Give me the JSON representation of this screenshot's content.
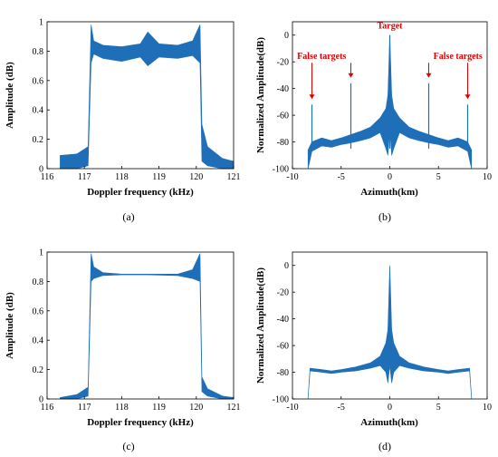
{
  "chart_data": [
    {
      "id": "a",
      "type": "area",
      "caption": "(a)",
      "xlabel": "Doppler frequency (kHz)",
      "ylabel": "Amplitude (dB)",
      "xlim": [
        116,
        121
      ],
      "ylim": [
        0,
        1
      ],
      "xticks": [
        "116",
        "117",
        "118",
        "119",
        "120",
        "121"
      ],
      "yticks": [
        "0",
        "0.2",
        "0.4",
        "0.6",
        "0.8",
        "1"
      ],
      "color": "#1f6fb8",
      "series": [
        {
          "x": [
            116.35,
            116.8,
            117.1,
            117.18,
            117.25,
            117.5,
            118.0,
            118.5,
            118.7,
            119.0,
            119.5,
            119.9,
            120.1,
            120.15,
            120.3,
            120.7,
            121.0
          ],
          "y_upper": [
            0.09,
            0.1,
            0.15,
            0.98,
            0.87,
            0.84,
            0.83,
            0.85,
            0.93,
            0.85,
            0.84,
            0.87,
            0.98,
            0.3,
            0.15,
            0.07,
            0.05
          ],
          "y_lower": [
            0.0,
            0.0,
            0.02,
            0.72,
            0.78,
            0.75,
            0.73,
            0.76,
            0.7,
            0.76,
            0.75,
            0.77,
            0.72,
            0.05,
            0.02,
            0.0,
            0.0
          ]
        }
      ]
    },
    {
      "id": "b",
      "type": "line",
      "caption": "(b)",
      "xlabel": "Azimuth(km)",
      "ylabel": "Normalized Amplitude(dB)",
      "xlim": [
        -10,
        10
      ],
      "ylim": [
        -100,
        10
      ],
      "xticks": [
        "-10",
        "-5",
        "0",
        "5",
        "10"
      ],
      "yticks": [
        "-100",
        "-80",
        "-60",
        "-40",
        "-20",
        "0"
      ],
      "color": "#1f6fb8",
      "series": [
        {
          "x": [
            -8.4,
            -8.0,
            -7.0,
            -6.0,
            -5.0,
            -4.2,
            -3.0,
            -2.0,
            -1.0,
            -0.4,
            -0.2,
            0.0,
            0.2,
            0.4,
            1.0,
            2.0,
            3.0,
            4.2,
            5.0,
            6.0,
            7.0,
            8.0,
            8.4
          ],
          "y_upper": [
            -86,
            -80,
            -77,
            -79,
            -77,
            -75,
            -72,
            -69,
            -62,
            -55,
            -45,
            0,
            -45,
            -55,
            -62,
            -69,
            -72,
            -75,
            -77,
            -79,
            -77,
            -80,
            -86
          ],
          "y_lower": [
            -100,
            -87,
            -83,
            -84,
            -82,
            -81,
            -79,
            -77,
            -73,
            -85,
            -90,
            -70,
            -90,
            -85,
            -73,
            -77,
            -79,
            -81,
            -82,
            -84,
            -83,
            -87,
            -100
          ]
        }
      ],
      "peaks": [
        {
          "x": -8,
          "y": -52
        },
        {
          "x": -4,
          "y": -36
        },
        {
          "x": 0,
          "y": 0
        },
        {
          "x": 4,
          "y": -36
        },
        {
          "x": 8,
          "y": -52
        }
      ],
      "annotations": [
        {
          "text": "Target",
          "x": 0,
          "y": 5
        },
        {
          "text": "False targets",
          "x": -7,
          "y": -18
        },
        {
          "text": "False targets",
          "x": 7,
          "y": -18
        }
      ]
    },
    {
      "id": "c",
      "type": "area",
      "caption": "(c)",
      "xlabel": "Doppler frequency (kHz)",
      "ylabel": "Amplitude (dB)",
      "xlim": [
        116,
        121
      ],
      "ylim": [
        0,
        1
      ],
      "xticks": [
        "116",
        "117",
        "118",
        "119",
        "120",
        "121"
      ],
      "yticks": [
        "0",
        "0.2",
        "0.4",
        "0.6",
        "0.8",
        "1"
      ],
      "color": "#1f6fb8",
      "series": [
        {
          "x": [
            116.35,
            116.8,
            117.1,
            117.18,
            117.25,
            117.5,
            118.0,
            118.7,
            119.5,
            119.9,
            120.1,
            120.15,
            120.3,
            120.7,
            121.0
          ],
          "y_upper": [
            0.01,
            0.03,
            0.08,
            0.99,
            0.9,
            0.86,
            0.85,
            0.85,
            0.85,
            0.88,
            0.99,
            0.15,
            0.07,
            0.02,
            0.01
          ],
          "y_lower": [
            0.0,
            0.0,
            0.02,
            0.8,
            0.82,
            0.84,
            0.845,
            0.845,
            0.84,
            0.82,
            0.8,
            0.05,
            0.02,
            0.0,
            0.0
          ]
        }
      ]
    },
    {
      "id": "d",
      "type": "line",
      "caption": "(d)",
      "xlabel": "Azimuth(km)",
      "ylabel": "Normalized Amplitude(dB)",
      "xlim": [
        -10,
        10
      ],
      "ylim": [
        -100,
        10
      ],
      "xticks": [
        "-10",
        "-5",
        "0",
        "5",
        "10"
      ],
      "yticks": [
        "-100",
        "-80",
        "-60",
        "-40",
        "-20",
        "0"
      ],
      "color": "#1f6fb8",
      "series": [
        {
          "x": [
            -8.4,
            -8.2,
            -7.0,
            -6.0,
            -5.0,
            -3.5,
            -2.0,
            -1.0,
            -0.4,
            -0.2,
            0.0,
            0.2,
            0.4,
            1.0,
            2.0,
            3.5,
            5.0,
            6.0,
            7.0,
            8.2,
            8.4
          ],
          "y_upper": [
            -99,
            -77,
            -78,
            -79,
            -78,
            -76,
            -73,
            -68,
            -58,
            -48,
            0,
            -48,
            -58,
            -68,
            -73,
            -76,
            -78,
            -79,
            -78,
            -77,
            -99
          ],
          "y_lower": [
            -100,
            -79,
            -80,
            -81,
            -80,
            -79,
            -77,
            -75,
            -80,
            -88,
            -75,
            -88,
            -80,
            -75,
            -77,
            -79,
            -80,
            -81,
            -80,
            -79,
            -100
          ]
        }
      ]
    }
  ]
}
